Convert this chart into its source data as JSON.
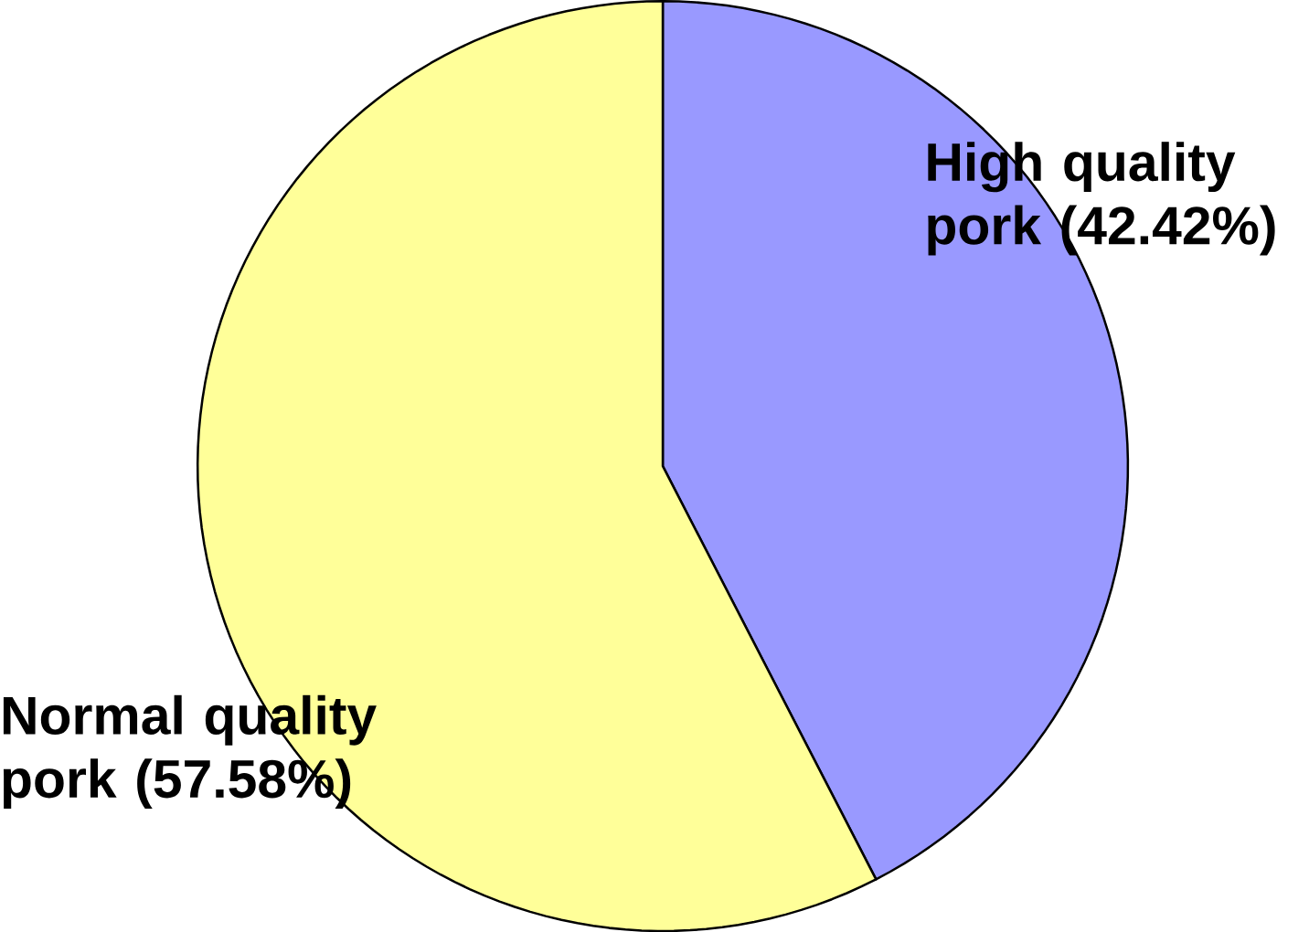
{
  "chart_data": {
    "type": "pie",
    "categories": [
      "High quality pork (42.42%)",
      "Normal quality pork (57.58%)"
    ],
    "values": [
      42.42,
      57.58
    ],
    "colors": [
      "#9999ff",
      "#ffff99"
    ]
  }
}
